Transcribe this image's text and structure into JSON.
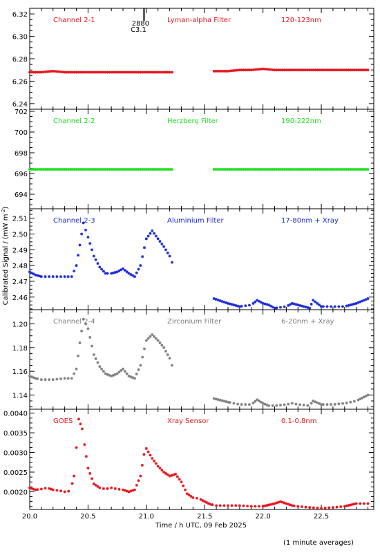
{
  "chart_data": {
    "type": "scatter",
    "xlabel": "Time / h UTC, 09 Feb 2025",
    "ylabel": "Calibrated Signal / (mW m",
    "ylabel_sup": "-2",
    "ylabel_close": ")",
    "footnote": "(1 minute averages)",
    "xlim": [
      20.0,
      22.95
    ],
    "xticks": [
      "20.0",
      "20.5",
      "21.0",
      "21.5",
      "22.0",
      "22.5"
    ],
    "event_marker": {
      "x": 20.98,
      "label1": "2880",
      "label2": "C3.1"
    },
    "panels": [
      {
        "channel": "Channel 2-1",
        "filter": "Lyman-alpha Filter",
        "band": "120-123nm",
        "color": "#e8141c",
        "label_color": "#e8141c",
        "ylim": [
          6.235,
          6.325
        ],
        "yticks": [
          "6.24",
          "6.26",
          "6.28",
          "6.30",
          "6.32"
        ],
        "series": [
          {
            "x": [
              20.0,
              20.1,
              20.2,
              20.3,
              20.4,
              20.5,
              20.6,
              20.7,
              20.8,
              20.9,
              21.0,
              21.1,
              21.2,
              21.22
            ],
            "y": [
              6.268,
              6.268,
              6.269,
              6.268,
              6.268,
              6.268,
              6.268,
              6.268,
              6.268,
              6.268,
              6.268,
              6.268,
              6.268,
              6.268
            ]
          },
          {
            "x": [
              21.58,
              21.7,
              21.8,
              21.9,
              22.0,
              22.1,
              22.2,
              22.3,
              22.4,
              22.5,
              22.6,
              22.7,
              22.8,
              22.9
            ],
            "y": [
              6.269,
              6.269,
              6.27,
              6.27,
              6.271,
              6.27,
              6.27,
              6.27,
              6.27,
              6.27,
              6.27,
              6.27,
              6.27,
              6.27
            ]
          }
        ]
      },
      {
        "channel": "Channel 2-2",
        "filter": "Herzberg Filter",
        "band": "190-222nm",
        "color": "#20e020",
        "label_color": "#20e020",
        "ylim": [
          692.6,
          702.2
        ],
        "yticks": [
          "694",
          "696",
          "698",
          "700",
          "702"
        ],
        "series": [
          {
            "x": [
              20.0,
              20.2,
              20.4,
              20.6,
              20.8,
              21.0,
              21.22
            ],
            "y": [
              696.4,
              696.4,
              696.4,
              696.4,
              696.4,
              696.4,
              696.4
            ]
          },
          {
            "x": [
              21.58,
              21.8,
              22.0,
              22.2,
              22.4,
              22.6,
              22.9
            ],
            "y": [
              696.4,
              696.4,
              696.4,
              696.4,
              696.4,
              696.4,
              696.4
            ]
          }
        ]
      },
      {
        "channel": "Channel 2-3",
        "filter": "Aluminium Filter",
        "band": "17-80nm + Xray",
        "color": "#1a2ad8",
        "label_color": "#1a2ad8",
        "ylim": [
          2.452,
          2.516
        ],
        "yticks": [
          "2.46",
          "2.47",
          "2.48",
          "2.49",
          "2.50",
          "2.51"
        ],
        "series": [
          {
            "x": [
              20.0,
              20.05,
              20.1,
              20.2,
              20.3,
              20.36,
              20.4,
              20.43,
              20.46,
              20.5,
              20.55,
              20.6,
              20.65,
              20.7,
              20.75,
              20.8,
              20.85,
              20.9,
              20.95,
              21.0,
              21.05,
              21.1,
              21.15,
              21.2,
              21.22
            ],
            "y": [
              2.476,
              2.474,
              2.473,
              2.473,
              2.473,
              2.473,
              2.48,
              2.493,
              2.507,
              2.498,
              2.486,
              2.479,
              2.475,
              2.475,
              2.476,
              2.478,
              2.475,
              2.473,
              2.48,
              2.497,
              2.502,
              2.497,
              2.492,
              2.486,
              2.482
            ]
          },
          {
            "x": [
              21.58,
              21.7,
              21.8,
              21.9,
              21.95,
              22.0,
              22.05,
              22.1,
              22.2,
              22.25,
              22.3,
              22.4,
              22.43,
              22.5,
              22.6,
              22.7,
              22.8,
              22.9
            ],
            "y": [
              2.459,
              2.456,
              2.454,
              2.455,
              2.458,
              2.456,
              2.455,
              2.453,
              2.454,
              2.456,
              2.455,
              2.453,
              2.458,
              2.454,
              2.454,
              2.454,
              2.456,
              2.459
            ]
          }
        ]
      },
      {
        "channel": "Channel 2-4",
        "filter": "Zirconium Filter",
        "band": "6-20nm + Xray",
        "color": "#808080",
        "label_color": "#808080",
        "ylim": [
          1.128,
          1.212
        ],
        "yticks": [
          "1.14",
          "1.16",
          "1.18",
          "1.20"
        ],
        "series": [
          {
            "x": [
              20.0,
              20.05,
              20.1,
              20.2,
              20.3,
              20.36,
              20.4,
              20.43,
              20.46,
              20.5,
              20.55,
              20.6,
              20.65,
              20.7,
              20.75,
              20.8,
              20.85,
              20.9,
              20.95,
              21.0,
              21.05,
              21.1,
              21.15,
              21.2,
              21.22
            ],
            "y": [
              1.156,
              1.154,
              1.153,
              1.153,
              1.154,
              1.154,
              1.162,
              1.184,
              1.204,
              1.196,
              1.174,
              1.164,
              1.158,
              1.156,
              1.158,
              1.162,
              1.156,
              1.154,
              1.165,
              1.186,
              1.191,
              1.186,
              1.18,
              1.171,
              1.165
            ]
          },
          {
            "x": [
              21.58,
              21.7,
              21.8,
              21.9,
              21.95,
              22.0,
              22.05,
              22.1,
              22.2,
              22.25,
              22.3,
              22.4,
              22.43,
              22.5,
              22.6,
              22.7,
              22.8,
              22.9
            ],
            "y": [
              1.137,
              1.134,
              1.132,
              1.132,
              1.136,
              1.133,
              1.131,
              1.131,
              1.132,
              1.133,
              1.132,
              1.131,
              1.135,
              1.132,
              1.132,
              1.133,
              1.135,
              1.14
            ]
          }
        ]
      },
      {
        "channel": "GOES",
        "filter": "Xray Sensor",
        "band": "0.1-0.8nm",
        "color": "#e8141c",
        "label_color": "#e8141c",
        "ylim": [
          0.00155,
          0.0041
        ],
        "yticks": [
          "0.0020",
          "0.0025",
          "0.0030",
          "0.0035",
          "0.0040"
        ],
        "series": [
          {
            "x": [
              20.0,
              20.05,
              20.1,
              20.15,
              20.2,
              20.25,
              20.3,
              20.35,
              20.38,
              20.42,
              20.45,
              20.47,
              20.5,
              20.55,
              20.6,
              20.65,
              20.7,
              20.75,
              20.8,
              20.85,
              20.9,
              20.95,
              20.98,
              21.0,
              21.05,
              21.1,
              21.15,
              21.2,
              21.25,
              21.3,
              21.35,
              21.4,
              21.45,
              21.5,
              21.55,
              21.6,
              21.7,
              21.8,
              21.9,
              22.0,
              22.1,
              22.15,
              22.2,
              22.25,
              22.3,
              22.4,
              22.5,
              22.6,
              22.7,
              22.8,
              22.9
            ],
            "y": [
              0.0021,
              0.00205,
              0.00207,
              0.0021,
              0.00205,
              0.00203,
              0.002,
              0.00202,
              0.0024,
              0.00385,
              0.0036,
              0.0032,
              0.0026,
              0.0022,
              0.0021,
              0.00207,
              0.0021,
              0.00207,
              0.00205,
              0.002,
              0.00205,
              0.0024,
              0.00295,
              0.0031,
              0.00285,
              0.00265,
              0.0025,
              0.0024,
              0.00245,
              0.00225,
              0.00195,
              0.00185,
              0.00183,
              0.00175,
              0.00168,
              0.00165,
              0.00165,
              0.00165,
              0.00163,
              0.00163,
              0.0017,
              0.00175,
              0.0017,
              0.00165,
              0.00163,
              0.0016,
              0.00158,
              0.0016,
              0.00163,
              0.0017,
              0.0017
            ]
          }
        ]
      }
    ]
  }
}
